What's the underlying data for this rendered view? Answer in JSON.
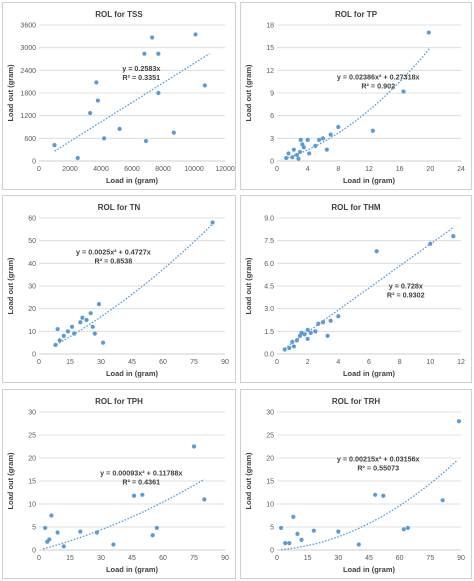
{
  "colors": {
    "point": "#5b9bd5",
    "trend": "#5b9bd5",
    "grid": "#d9d9d9",
    "axis": "#bfbfbf"
  },
  "chart_data": [
    {
      "type": "scatter",
      "title": "ROL for TSS",
      "xlabel": "Load in (gram)",
      "ylabel": "Load out (gram)",
      "xlim": [
        0,
        12000
      ],
      "ylim": [
        0,
        3600
      ],
      "xticks": [
        "0",
        "2000",
        "4000",
        "6000",
        "8000",
        "10000",
        "12000"
      ],
      "yticks": [
        "0",
        "600",
        "1200",
        "1800",
        "2400",
        "3000",
        "3600"
      ],
      "x": [
        1000,
        2500,
        3300,
        3800,
        3700,
        4200,
        5200,
        6900,
        6800,
        7300,
        7700,
        7700,
        8700,
        10100,
        10700
      ],
      "y": [
        420,
        80,
        1270,
        1600,
        2080,
        600,
        850,
        530,
        2840,
        3270,
        1800,
        2840,
        750,
        3350,
        2000
      ],
      "trend": {
        "kind": "linear",
        "a": 0,
        "b": 0.2583,
        "from": 1000,
        "to": 11000
      },
      "equation": "y = 0.2583x",
      "r2": "R² = 0.3351",
      "grid": true
    },
    {
      "type": "scatter",
      "title": "ROL for TP",
      "xlabel": "Load in (gram)",
      "ylabel": "Load out (gram)",
      "xlim": [
        0,
        24
      ],
      "ylim": [
        0,
        18
      ],
      "xticks": [
        "0",
        "4",
        "8",
        "12",
        "16",
        "20",
        "24"
      ],
      "yticks": [
        "0",
        "3",
        "6",
        "9",
        "12",
        "15",
        "18"
      ],
      "x": [
        1.2,
        1.5,
        2.0,
        2.2,
        2.6,
        2.8,
        3.0,
        3.1,
        3.3,
        3.5,
        4.0,
        4.2,
        5.0,
        5.5,
        6.0,
        6.5,
        7.0,
        8.0,
        12.5,
        16.5,
        19.8
      ],
      "y": [
        0.4,
        1.0,
        0.5,
        1.5,
        0.8,
        0.3,
        1.2,
        2.8,
        2.2,
        1.8,
        2.8,
        1.0,
        2.0,
        2.8,
        3.0,
        1.5,
        3.5,
        4.5,
        4.0,
        9.2,
        17.0
      ],
      "trend": {
        "kind": "quadratic",
        "a": 0.02386,
        "b": 0.27318,
        "from": 1,
        "to": 20
      },
      "equation": "y = 0.02386x² + 0.27318x",
      "r2": "R² = 0.902",
      "grid": true
    },
    {
      "type": "scatter",
      "title": "ROL for TN",
      "xlabel": "Load in (gram)",
      "ylabel": "Load out (gram)",
      "xlim": [
        0,
        90
      ],
      "ylim": [
        0,
        60
      ],
      "xticks": [
        "0",
        "15",
        "30",
        "45",
        "60",
        "75",
        "90"
      ],
      "yticks": [
        "0",
        "10",
        "20",
        "30",
        "40",
        "50",
        "60"
      ],
      "x": [
        8,
        9,
        10,
        12,
        14,
        16,
        17,
        20,
        21,
        23,
        25,
        26,
        27,
        29,
        31,
        84
      ],
      "y": [
        4,
        11,
        6,
        8,
        10,
        12,
        9,
        14,
        16,
        15,
        18,
        12,
        9,
        22,
        5,
        58
      ],
      "trend": {
        "kind": "quadratic",
        "a": 0.0025,
        "b": 0.4727,
        "from": 7,
        "to": 85
      },
      "equation": "y = 0.0025x² + 0.4727x",
      "r2": "R² = 0.8538",
      "grid": true
    },
    {
      "type": "scatter",
      "title": "ROL for THM",
      "xlabel": "Load in (gram)",
      "ylabel": "Load out (gram)",
      "xlim": [
        0,
        12
      ],
      "ylim": [
        0,
        9
      ],
      "xticks": [
        "0",
        "2",
        "4",
        "6",
        "8",
        "10",
        "12"
      ],
      "yticks": [
        "0.0",
        "1.5",
        "3.0",
        "4.5",
        "6.0",
        "7.5",
        "9.0"
      ],
      "x": [
        0.5,
        0.8,
        1.0,
        1.1,
        1.3,
        1.5,
        1.6,
        1.8,
        2.0,
        2.0,
        2.2,
        2.5,
        2.7,
        3.0,
        3.3,
        3.5,
        4.0,
        6.5,
        10.0,
        11.5
      ],
      "y": [
        0.3,
        0.4,
        0.8,
        0.5,
        0.9,
        1.2,
        1.4,
        1.3,
        1.0,
        1.6,
        1.4,
        1.5,
        2.0,
        2.1,
        1.2,
        2.2,
        2.5,
        6.8,
        7.3,
        7.8
      ],
      "trend": {
        "kind": "linear",
        "a": 0,
        "b": 0.728,
        "from": 0.5,
        "to": 11.5
      },
      "equation": "y = 0.728x",
      "r2": "R² = 0.9302",
      "grid": true
    },
    {
      "type": "scatter",
      "title": "ROL for TPH",
      "xlabel": "Load in (gram)",
      "ylabel": "Load out (gram)",
      "xlim": [
        0,
        90
      ],
      "ylim": [
        0,
        30
      ],
      "xticks": [
        "0",
        "15",
        "30",
        "45",
        "60",
        "75",
        "90"
      ],
      "yticks": [
        "0",
        "5",
        "10",
        "15",
        "20",
        "25",
        "30"
      ],
      "x": [
        3,
        4,
        5,
        6,
        9,
        12,
        20,
        28,
        36,
        46,
        50,
        55,
        57,
        75,
        80
      ],
      "y": [
        4.8,
        1.8,
        2.3,
        7.5,
        3.8,
        0.8,
        4.0,
        3.8,
        1.2,
        11.8,
        12.0,
        3.2,
        4.8,
        22.5,
        11.0
      ],
      "trend": {
        "kind": "quadratic",
        "a": 0.00093,
        "b": 0.11788,
        "from": 2,
        "to": 80
      },
      "equation": "y = 0.00093x² + 0.11788x",
      "r2": "R² = 0.4361",
      "grid": true
    },
    {
      "type": "scatter",
      "title": "ROL for TRH",
      "xlabel": "Load in (gram)",
      "ylabel": "Load out (gram)",
      "xlim": [
        0,
        90
      ],
      "ylim": [
        0,
        30
      ],
      "xticks": [
        "0",
        "15",
        "30",
        "45",
        "60",
        "75",
        "90"
      ],
      "yticks": [
        "0",
        "5",
        "10",
        "15",
        "20",
        "25",
        "30"
      ],
      "x": [
        2,
        4,
        6,
        8,
        10,
        12,
        18,
        30,
        40,
        48,
        52,
        62,
        64,
        81,
        89
      ],
      "y": [
        4.8,
        1.5,
        1.5,
        7.2,
        3.5,
        2.2,
        4.2,
        4.0,
        1.2,
        12.0,
        11.8,
        4.5,
        4.8,
        10.8,
        28.0
      ],
      "trend": {
        "kind": "quadratic",
        "a": 0.00215,
        "b": 0.03156,
        "from": 2,
        "to": 88
      },
      "equation": "y = 0.00215x² + 0.03156x",
      "r2": "R² = 0.55073",
      "grid": true
    }
  ]
}
